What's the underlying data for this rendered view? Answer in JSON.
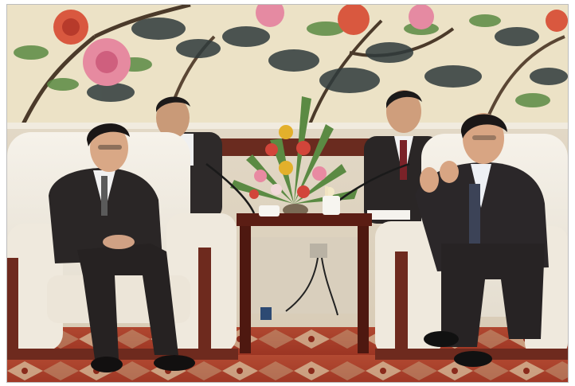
{
  "photo": {
    "subject": "photo-meeting-reception-room",
    "colors": {
      "mural_bg": "#ece2c6",
      "wall_upper": "#e6dccb",
      "wall_lower": "#d9cdb9",
      "carpet_red": "#b5442e",
      "carpet_cream": "#dcc9a6",
      "sofa_white": "#f1ede4",
      "wood_trim": "#6e2a1e",
      "table_wood": "#5b1d14",
      "suit_dark": "#2a2626",
      "skin": "#d8a583",
      "flower_red": "#d2453a",
      "flower_yellow": "#e3b02b",
      "leaf_green": "#5b8a43"
    }
  }
}
